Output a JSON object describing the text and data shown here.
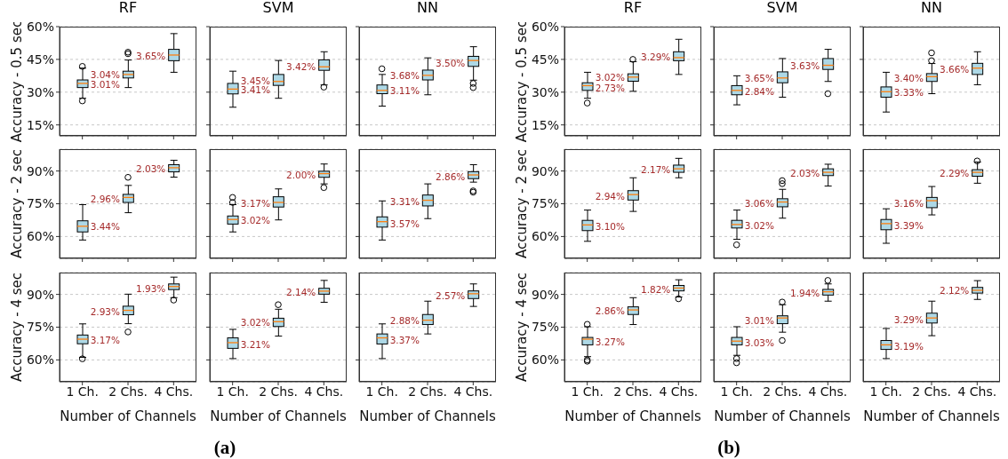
{
  "chart_data": [
    {
      "type": "box",
      "title": "RF",
      "ylabel": "Accuracy - 0.5 sec",
      "categories": [
        "1 Ch.",
        "2 Chs.",
        "4 Chs."
      ],
      "ylim": [
        10,
        60
      ],
      "yticks": [
        {
          "value": 15,
          "label": "15%"
        },
        {
          "value": 30,
          "label": "30%"
        },
        {
          "value": 45,
          "label": "45%"
        },
        {
          "value": 60,
          "label": "60%"
        }
      ],
      "grid": "y",
      "tick_labels": "y",
      "series": [
        {
          "color": "#add8e6",
          "boxes": [
            {
              "low": 27.2,
              "q1": 32.1,
              "median": 34.0,
              "q3": 35.6,
              "high": 41.0,
              "outliers": [
                26.0,
                41.8
              ]
            },
            {
              "low": 32.1,
              "q1": 36.5,
              "median": 38.1,
              "q3": 39.6,
              "high": 44.7,
              "outliers": [
                47.6,
                48.3
              ]
            },
            {
              "low": 39.1,
              "q1": 44.4,
              "median": 47.0,
              "q3": 49.6,
              "high": 56.8
            }
          ]
        }
      ],
      "annotations": [
        {
          "text": "3.01%",
          "x": "1 Ch.",
          "y": 33.4
        },
        {
          "text": "3.04%",
          "x": "2 Chs.",
          "y": 38.0
        },
        {
          "text": "3.65%",
          "x": "4 Chs.",
          "y": 46.6
        }
      ]
    },
    {
      "type": "box",
      "title": "SVM",
      "categories": [
        "1 Ch.",
        "2 Chs.",
        "4 Chs."
      ],
      "ylim": [
        10,
        60
      ],
      "yticks": [
        15,
        30,
        45,
        60
      ],
      "grid": "y",
      "tick_labels": false,
      "series": [
        {
          "color": "#add8e6",
          "boxes": [
            {
              "low": 23.1,
              "q1": 29.2,
              "median": 31.4,
              "q3": 34.0,
              "high": 39.6
            },
            {
              "low": 27.2,
              "q1": 33.1,
              "median": 34.9,
              "q3": 38.1,
              "high": 44.5
            },
            {
              "low": 33.3,
              "q1": 40.0,
              "median": 41.6,
              "q3": 44.8,
              "high": 48.5,
              "outliers": [
                32.3
              ]
            }
          ]
        }
      ],
      "annotations": [
        {
          "text": "3.41%",
          "x": "1 Ch.",
          "y": 31.1
        },
        {
          "text": "3.45%",
          "x": "2 Chs.",
          "y": 35.2
        },
        {
          "text": "3.42%",
          "x": "4 Chs.",
          "y": 41.8
        }
      ]
    },
    {
      "type": "box",
      "title": "NN",
      "categories": [
        "1 Ch.",
        "2 Chs.",
        "4 Chs."
      ],
      "ylim": [
        10,
        60
      ],
      "yticks": [
        15,
        30,
        45,
        60
      ],
      "grid": "y",
      "tick_labels": false,
      "series": [
        {
          "color": "#add8e6",
          "boxes": [
            {
              "low": 23.6,
              "q1": 29.3,
              "median": 30.8,
              "q3": 33.3,
              "high": 38.1,
              "outliers": [
                40.7
              ]
            },
            {
              "low": 28.8,
              "q1": 35.6,
              "median": 37.7,
              "q3": 40.1,
              "high": 45.7
            },
            {
              "low": 35.5,
              "q1": 41.8,
              "median": 44.5,
              "q3": 46.4,
              "high": 50.8,
              "outliers": [
                32.1,
                34.0
              ]
            }
          ]
        }
      ],
      "annotations": [
        {
          "text": "3.11%",
          "x": "1 Ch.",
          "y": 30.8
        },
        {
          "text": "3.68%",
          "x": "2 Chs.",
          "y": 37.7
        },
        {
          "text": "3.50%",
          "x": "4 Chs.",
          "y": 43.4
        }
      ]
    },
    {
      "type": "box",
      "title": "RF",
      "ylabel": "Accuracy - 0.5 sec",
      "categories": [
        "1 Ch.",
        "2 Chs.",
        "4 Chs."
      ],
      "ylim": [
        10,
        60
      ],
      "yticks": [
        {
          "value": 15,
          "label": "15%"
        },
        {
          "value": 30,
          "label": "30%"
        },
        {
          "value": 45,
          "label": "45%"
        },
        {
          "value": 60,
          "label": "60%"
        }
      ],
      "grid": "y",
      "tick_labels": "y",
      "series": [
        {
          "color": "#add8e6",
          "boxes": [
            {
              "low": 27.2,
              "q1": 30.8,
              "median": 33.0,
              "q3": 34.3,
              "high": 39.1,
              "outliers": [
                25.0
              ]
            },
            {
              "low": 30.4,
              "q1": 35.0,
              "median": 36.9,
              "q3": 38.4,
              "high": 44.0,
              "outliers": [
                45.0
              ]
            },
            {
              "low": 38.1,
              "q1": 44.4,
              "median": 45.8,
              "q3": 48.5,
              "high": 54.2
            }
          ]
        }
      ],
      "annotations": [
        {
          "text": "2.73%",
          "x": "1 Ch.",
          "y": 32.1
        },
        {
          "text": "3.02%",
          "x": "2 Chs.",
          "y": 36.9
        },
        {
          "text": "3.29%",
          "x": "4 Chs.",
          "y": 46.0
        }
      ]
    },
    {
      "type": "box",
      "title": "SVM",
      "categories": [
        "1 Ch.",
        "2 Chs.",
        "4 Chs."
      ],
      "ylim": [
        10,
        60
      ],
      "yticks": [
        15,
        30,
        45,
        60
      ],
      "grid": "y",
      "tick_labels": false,
      "series": [
        {
          "color": "#add8e6",
          "boxes": [
            {
              "low": 24.2,
              "q1": 28.8,
              "median": 30.8,
              "q3": 33.0,
              "high": 37.5
            },
            {
              "low": 27.7,
              "q1": 34.3,
              "median": 36.5,
              "q3": 39.3,
              "high": 45.4
            },
            {
              "low": 34.9,
              "q1": 40.4,
              "median": 42.3,
              "q3": 45.4,
              "high": 49.6,
              "outliers": [
                29.3
              ]
            }
          ]
        }
      ],
      "annotations": [
        {
          "text": "2.84%",
          "x": "1 Ch.",
          "y": 30.2
        },
        {
          "text": "3.65%",
          "x": "2 Chs.",
          "y": 36.4
        },
        {
          "text": "3.63%",
          "x": "4 Chs.",
          "y": 42.2
        }
      ]
    },
    {
      "type": "box",
      "title": "NN",
      "categories": [
        "1 Ch.",
        "2 Chs.",
        "4 Chs."
      ],
      "ylim": [
        10,
        60
      ],
      "yticks": [
        15,
        30,
        45,
        60
      ],
      "grid": "y",
      "tick_labels": false,
      "series": [
        {
          "color": "#add8e6",
          "boxes": [
            {
              "low": 20.9,
              "q1": 27.7,
              "median": 30.2,
              "q3": 32.4,
              "high": 39.1
            },
            {
              "low": 29.3,
              "q1": 34.9,
              "median": 37.1,
              "q3": 38.5,
              "high": 43.1,
              "outliers": [
                44.4,
                48.0
              ]
            },
            {
              "low": 33.4,
              "q1": 38.1,
              "median": 41.0,
              "q3": 43.2,
              "high": 48.5
            }
          ]
        }
      ],
      "annotations": [
        {
          "text": "3.33%",
          "x": "1 Ch.",
          "y": 29.8
        },
        {
          "text": "3.40%",
          "x": "2 Chs.",
          "y": 36.4
        },
        {
          "text": "3.66%",
          "x": "4 Chs.",
          "y": 40.4
        }
      ]
    },
    {
      "type": "box",
      "ylabel": "Accuracy - 2 sec",
      "categories": [
        "1 Ch.",
        "2 Chs.",
        "4 Chs."
      ],
      "ylim": [
        50,
        100
      ],
      "yticks": [
        {
          "value": 60,
          "label": "60%"
        },
        {
          "value": 75,
          "label": "75%"
        },
        {
          "value": 90,
          "label": "90%"
        }
      ],
      "grid": "y",
      "tick_labels": "y",
      "series": [
        {
          "color": "#add8e6",
          "boxes": [
            {
              "low": 58.4,
              "q1": 62.1,
              "median": 64.7,
              "q3": 67.2,
              "high": 74.6
            },
            {
              "low": 70.9,
              "q1": 75.6,
              "median": 77.9,
              "q3": 79.3,
              "high": 83.4,
              "outliers": [
                87.1
              ]
            },
            {
              "low": 87.2,
              "q1": 89.6,
              "median": 91.5,
              "q3": 92.9,
              "high": 94.9
            }
          ]
        }
      ],
      "annotations": [
        {
          "text": "3.44%",
          "x": "1 Ch.",
          "y": 64.6
        },
        {
          "text": "2.96%",
          "x": "2 Chs.",
          "y": 77.2
        },
        {
          "text": "2.03%",
          "x": "4 Chs.",
          "y": 91.0
        }
      ]
    },
    {
      "type": "box",
      "categories": [
        "1 Ch.",
        "2 Chs.",
        "4 Chs."
      ],
      "ylim": [
        50,
        100
      ],
      "yticks": [
        60,
        75,
        90
      ],
      "grid": "y",
      "tick_labels": false,
      "series": [
        {
          "color": "#add8e6",
          "boxes": [
            {
              "low": 62.1,
              "q1": 65.7,
              "median": 67.8,
              "q3": 69.4,
              "high": 74.6,
              "outliers": [
                75.6,
                77.9
              ]
            },
            {
              "low": 67.6,
              "q1": 73.5,
              "median": 75.6,
              "q3": 78.2,
              "high": 81.8
            },
            {
              "low": 84.1,
              "q1": 87.1,
              "median": 88.8,
              "q3": 89.9,
              "high": 93.2,
              "outliers": [
                82.4
              ]
            }
          ]
        }
      ],
      "annotations": [
        {
          "text": "3.02%",
          "x": "1 Ch.",
          "y": 67.6
        },
        {
          "text": "3.17%",
          "x": "2 Chs.",
          "y": 75.1
        },
        {
          "text": "2.00%",
          "x": "4 Chs.",
          "y": 88.2
        }
      ]
    },
    {
      "type": "box",
      "categories": [
        "1 Ch.",
        "2 Chs.",
        "4 Chs."
      ],
      "ylim": [
        50,
        100
      ],
      "yticks": [
        60,
        75,
        90
      ],
      "grid": "y",
      "tick_labels": false,
      "series": [
        {
          "color": "#add8e6",
          "boxes": [
            {
              "low": 58.4,
              "q1": 64.3,
              "median": 66.8,
              "q3": 69.0,
              "high": 76.3
            },
            {
              "low": 68.2,
              "q1": 74.0,
              "median": 76.6,
              "q3": 79.0,
              "high": 84.1
            },
            {
              "low": 84.9,
              "q1": 86.5,
              "median": 88.2,
              "q3": 89.7,
              "high": 92.9,
              "outliers": [
                80.3,
                80.9
              ]
            }
          ]
        }
      ],
      "annotations": [
        {
          "text": "3.57%",
          "x": "1 Ch.",
          "y": 66.0
        },
        {
          "text": "3.31%",
          "x": "2 Chs.",
          "y": 76.0
        },
        {
          "text": "2.86%",
          "x": "4 Chs.",
          "y": 87.4
        }
      ]
    },
    {
      "type": "box",
      "ylabel": "Accuracy - 2 sec",
      "categories": [
        "1 Ch.",
        "2 Chs.",
        "4 Chs."
      ],
      "ylim": [
        50,
        100
      ],
      "yticks": [
        {
          "value": 60,
          "label": "60%"
        },
        {
          "value": 75,
          "label": "75%"
        },
        {
          "value": 90,
          "label": "90%"
        }
      ],
      "grid": "y",
      "tick_labels": "y",
      "series": [
        {
          "color": "#add8e6",
          "boxes": [
            {
              "low": 57.8,
              "q1": 62.7,
              "median": 65.3,
              "q3": 67.4,
              "high": 72.1
            },
            {
              "low": 71.5,
              "q1": 76.7,
              "median": 79.2,
              "q3": 81.0,
              "high": 86.9
            },
            {
              "low": 86.9,
              "q1": 89.4,
              "median": 91.0,
              "q3": 92.7,
              "high": 95.8
            }
          ]
        }
      ],
      "annotations": [
        {
          "text": "3.10%",
          "x": "1 Ch.",
          "y": 64.7
        },
        {
          "text": "2.94%",
          "x": "2 Chs.",
          "y": 78.6
        },
        {
          "text": "2.17%",
          "x": "4 Chs.",
          "y": 90.7
        }
      ]
    },
    {
      "type": "box",
      "categories": [
        "1 Ch.",
        "2 Chs.",
        "4 Chs."
      ],
      "ylim": [
        50,
        100
      ],
      "yticks": [
        60,
        75,
        90
      ],
      "grid": "y",
      "tick_labels": false,
      "series": [
        {
          "color": "#add8e6",
          "boxes": [
            {
              "low": 58.7,
              "q1": 63.9,
              "median": 65.5,
              "q3": 67.4,
              "high": 72.1,
              "outliers": [
                56.2
              ]
            },
            {
              "low": 68.4,
              "q1": 73.6,
              "median": 75.8,
              "q3": 77.3,
              "high": 81.6,
              "outliers": [
                84.2,
                85.6
              ]
            },
            {
              "low": 83.1,
              "q1": 87.9,
              "median": 89.4,
              "q3": 91.0,
              "high": 93.1
            }
          ]
        }
      ],
      "annotations": [
        {
          "text": "3.02%",
          "x": "1 Ch.",
          "y": 64.9
        },
        {
          "text": "3.06%",
          "x": "2 Chs.",
          "y": 75.4
        },
        {
          "text": "2.03%",
          "x": "4 Chs.",
          "y": 89.0
        }
      ]
    },
    {
      "type": "box",
      "categories": [
        "1 Ch.",
        "2 Chs.",
        "4 Chs."
      ],
      "ylim": [
        50,
        100
      ],
      "yticks": [
        60,
        75,
        90
      ],
      "grid": "y",
      "tick_labels": false,
      "series": [
        {
          "color": "#add8e6",
          "boxes": [
            {
              "low": 56.9,
              "q1": 63.1,
              "median": 65.9,
              "q3": 67.8,
              "high": 72.7
            },
            {
              "low": 69.9,
              "q1": 73.2,
              "median": 76.4,
              "q3": 77.9,
              "high": 82.9
            },
            {
              "low": 84.4,
              "q1": 87.6,
              "median": 89.4,
              "q3": 90.6,
              "high": 94.1,
              "outliers": [
                94.6
              ]
            }
          ]
        }
      ],
      "annotations": [
        {
          "text": "3.39%",
          "x": "1 Ch.",
          "y": 65.2
        },
        {
          "text": "3.16%",
          "x": "2 Chs.",
          "y": 75.4
        },
        {
          "text": "2.29%",
          "x": "4 Chs.",
          "y": 89.0
        }
      ]
    },
    {
      "type": "box",
      "ylabel": "Accuracy - 4 sec",
      "xlabel": "Number of Channels",
      "categories": [
        "1 Ch.",
        "2 Chs.",
        "4 Chs."
      ],
      "ylim": [
        50,
        100
      ],
      "yticks": [
        {
          "value": 60,
          "label": "60%"
        },
        {
          "value": 75,
          "label": "75%"
        },
        {
          "value": 90,
          "label": "90%"
        }
      ],
      "grid": "y",
      "series": [
        {
          "color": "#add8e6",
          "boxes": [
            {
              "low": 61.2,
              "q1": 67.4,
              "median": 69.5,
              "q3": 71.4,
              "high": 76.5,
              "outliers": [
                60.5
              ]
            },
            {
              "low": 76.6,
              "q1": 80.7,
              "median": 82.7,
              "q3": 84.6,
              "high": 90.1,
              "outliers": [
                72.8
              ]
            },
            {
              "low": 88.5,
              "q1": 92.2,
              "median": 93.6,
              "q3": 94.8,
              "high": 97.9,
              "outliers": [
                87.4
              ]
            }
          ]
        }
      ],
      "annotations": [
        {
          "text": "3.17%",
          "x": "1 Ch.",
          "y": 69.2
        },
        {
          "text": "2.93%",
          "x": "2 Chs.",
          "y": 82.3
        },
        {
          "text": "1.93%",
          "x": "4 Chs.",
          "y": 92.8
        }
      ]
    },
    {
      "type": "box",
      "xlabel": "Number of Channels",
      "categories": [
        "1 Ch.",
        "2 Chs.",
        "4 Chs."
      ],
      "ylim": [
        50,
        100
      ],
      "yticks": [
        60,
        75,
        90
      ],
      "grid": "y",
      "tick_labels": "x",
      "series": [
        {
          "color": "#add8e6",
          "boxes": [
            {
              "low": 60.6,
              "q1": 65.3,
              "median": 67.9,
              "q3": 70.1,
              "high": 74.0
            },
            {
              "low": 70.9,
              "q1": 75.3,
              "median": 77.5,
              "q3": 79.1,
              "high": 83.2,
              "outliers": [
                85.3
              ]
            },
            {
              "low": 86.4,
              "q1": 90.1,
              "median": 91.5,
              "q3": 92.8,
              "high": 96.4
            }
          ]
        }
      ],
      "annotations": [
        {
          "text": "3.21%",
          "x": "1 Ch.",
          "y": 67.0
        },
        {
          "text": "3.02%",
          "x": "2 Chs.",
          "y": 77.2
        },
        {
          "text": "2.14%",
          "x": "4 Chs.",
          "y": 91.0
        },
        "(a)"
      ]
    },
    {
      "type": "box",
      "xlabel": "Number of Channels",
      "categories": [
        "1 Ch.",
        "2 Chs.",
        "4 Chs."
      ],
      "ylim": [
        50,
        100
      ],
      "yticks": [
        60,
        75,
        90
      ],
      "grid": "y",
      "tick_labels": "x",
      "series": [
        {
          "color": "#add8e6",
          "boxes": [
            {
              "low": 60.6,
              "q1": 67.3,
              "median": 70.1,
              "q3": 71.9,
              "high": 76.5
            },
            {
              "low": 71.9,
              "q1": 76.2,
              "median": 78.2,
              "q3": 80.8,
              "high": 86.9
            },
            {
              "low": 84.5,
              "q1": 88.1,
              "median": 90.3,
              "q3": 91.6,
              "high": 94.8
            }
          ]
        }
      ],
      "annotations": [
        {
          "text": "3.37%",
          "x": "1 Ch.",
          "y": 69.2
        },
        {
          "text": "2.88%",
          "x": "2 Chs.",
          "y": 78.2
        },
        {
          "text": "2.57%",
          "x": "4 Chs.",
          "y": 89.6
        }
      ]
    },
    {
      "type": "box",
      "ylabel": "Accuracy - 4 sec",
      "xlabel": "Number of Channels",
      "categories": [
        "1 Ch.",
        "2 Chs.",
        "4 Chs."
      ],
      "ylim": [
        50,
        100
      ],
      "yticks": [
        {
          "value": 60,
          "label": "60%"
        },
        {
          "value": 75,
          "label": "75%"
        },
        {
          "value": 90,
          "label": "90%"
        }
      ],
      "grid": "y",
      "series": [
        {
          "color": "#add8e6",
          "boxes": [
            {
              "low": 61.5,
              "q1": 66.9,
              "median": 69.5,
              "q3": 70.3,
              "high": 75.2,
              "outliers": [
                59.4,
                60.0,
                76.3
              ]
            },
            {
              "low": 76.2,
              "q1": 80.8,
              "median": 82.9,
              "q3": 84.3,
              "high": 88.5
            },
            {
              "low": 88.8,
              "q1": 91.6,
              "median": 92.9,
              "q3": 94.1,
              "high": 96.7,
              "outliers": [
                88.0
              ]
            }
          ]
        }
      ],
      "annotations": [
        {
          "text": "3.27%",
          "x": "1 Ch.",
          "y": 68.3
        },
        {
          "text": "2.86%",
          "x": "2 Chs.",
          "y": 82.4
        },
        {
          "text": "1.82%",
          "x": "4 Chs.",
          "y": 92.3
        }
      ]
    },
    {
      "type": "box",
      "xlabel": "Number of Channels",
      "categories": [
        "1 Ch.",
        "2 Chs.",
        "4 Chs."
      ],
      "ylim": [
        50,
        100
      ],
      "yticks": [
        60,
        75,
        90
      ],
      "grid": "y",
      "tick_labels": "x",
      "series": [
        {
          "color": "#add8e6",
          "boxes": [
            {
              "low": 62.1,
              "q1": 66.9,
              "median": 68.6,
              "q3": 70.3,
              "high": 75.2,
              "outliers": [
                58.7,
                60.6
              ]
            },
            {
              "low": 72.7,
              "q1": 76.6,
              "median": 79.2,
              "q3": 80.2,
              "high": 85.3,
              "outliers": [
                68.9,
                86.5
              ]
            },
            {
              "low": 86.9,
              "q1": 89.7,
              "median": 91.2,
              "q3": 92.3,
              "high": 94.8,
              "outliers": [
                96.4
              ]
            }
          ]
        }
      ],
      "annotations": [
        {
          "text": "3.03%",
          "x": "1 Ch.",
          "y": 68.0
        },
        {
          "text": "3.01%",
          "x": "2 Chs.",
          "y": 78.2
        },
        {
          "text": "1.94%",
          "x": "4 Chs.",
          "y": 90.6
        },
        "(b)"
      ]
    },
    {
      "type": "box",
      "xlabel": "Number of Channels",
      "categories": [
        "1 Ch.",
        "2 Chs.",
        "4 Chs."
      ],
      "ylim": [
        50,
        100
      ],
      "yticks": [
        60,
        75,
        90
      ],
      "grid": "y",
      "tick_labels": "x",
      "series": [
        {
          "color": "#add8e6",
          "boxes": [
            {
              "low": 60.6,
              "q1": 64.8,
              "median": 66.9,
              "q3": 68.9,
              "high": 74.4
            },
            {
              "low": 71.1,
              "q1": 76.9,
              "median": 79.2,
              "q3": 81.4,
              "high": 86.9
            },
            {
              "low": 87.7,
              "q1": 90.6,
              "median": 91.9,
              "q3": 93.2,
              "high": 96.3
            }
          ]
        }
      ],
      "annotations": [
        {
          "text": "3.19%",
          "x": "1 Ch.",
          "y": 66.3
        },
        {
          "text": "3.29%",
          "x": "2 Chs.",
          "y": 78.6
        },
        {
          "text": "2.12%",
          "x": "4 Chs.",
          "y": 91.7
        }
      ]
    }
  ]
}
